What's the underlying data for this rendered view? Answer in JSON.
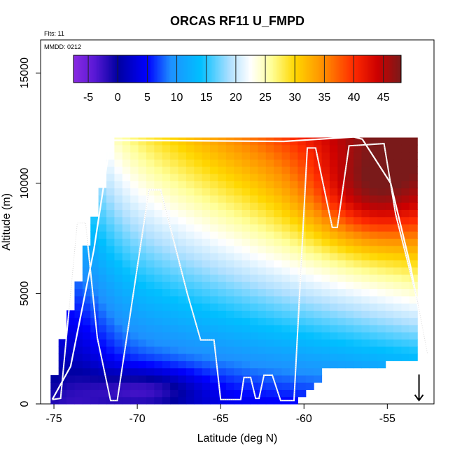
{
  "header": {
    "flights_note": "Flts: 11",
    "mmdd_note": "MMDD: 0212"
  },
  "chart_data": {
    "type": "heatmap",
    "title": "ORCAS RF11 U_FMPD",
    "xlabel": "Latitude (deg N)",
    "ylabel": "Altitude (m)",
    "xlim": [
      -75.8,
      -52.2
    ],
    "ylim": [
      0,
      16500
    ],
    "x_ticks": [
      -75,
      -70,
      -65,
      -60,
      -55
    ],
    "x_tick_labels": [
      "-75",
      "-70",
      "-65",
      "-60",
      "-55"
    ],
    "y_ticks": [
      0,
      5000,
      10000,
      15000
    ],
    "y_tick_labels": [
      "0",
      "5000",
      "10000",
      "15000"
    ],
    "colorbar": {
      "min": -7.5,
      "max": 48,
      "ticks": [
        -5,
        0,
        5,
        10,
        15,
        20,
        25,
        30,
        35,
        40,
        45
      ],
      "tick_labels": [
        "-5",
        "0",
        "5",
        "10",
        "15",
        "20",
        "25",
        "30",
        "35",
        "40",
        "45"
      ],
      "colors": [
        "#8a2be2",
        "#5a19d6",
        "#0000a0",
        "#0000ff",
        "#1e90ff",
        "#00bfff",
        "#b0e0ff",
        "#ffffff",
        "#ffff9a",
        "#ffd700",
        "#ff8c00",
        "#ff2a00",
        "#cc0000",
        "#7a1a1a"
      ],
      "stops": [
        -7.5,
        -4,
        0,
        5,
        9,
        14,
        19,
        22.5,
        26,
        30,
        35,
        40,
        44,
        48
      ]
    },
    "wind_field": {
      "bins_x": 46,
      "bins_y": 38,
      "description": "Zonal wind (m/s), weak near surface in the south, strong jet aloft near -56 to -53 deg N",
      "lat_extent": [
        -75.2,
        -53.2
      ]
    },
    "flight_track": [
      [
        -75.1,
        200
      ],
      [
        -74.6,
        250
      ],
      [
        -73.6,
        8200
      ],
      [
        -73.1,
        8200
      ],
      [
        -72.4,
        3000
      ],
      [
        -71.6,
        150
      ],
      [
        -71.2,
        150
      ],
      [
        -69.8,
        7200
      ],
      [
        -69.3,
        9700
      ],
      [
        -68.6,
        9700
      ],
      [
        -67.0,
        5000
      ],
      [
        -66.2,
        2900
      ],
      [
        -65.4,
        2900
      ],
      [
        -65.0,
        200
      ],
      [
        -63.8,
        200
      ],
      [
        -63.6,
        1200
      ],
      [
        -63.2,
        1200
      ],
      [
        -62.9,
        250
      ],
      [
        -62.7,
        250
      ],
      [
        -62.4,
        1300
      ],
      [
        -61.9,
        1300
      ],
      [
        -61.4,
        150
      ],
      [
        -60.6,
        150
      ],
      [
        -59.8,
        11600
      ],
      [
        -59.3,
        11600
      ],
      [
        -58.3,
        8000
      ],
      [
        -58.0,
        8000
      ],
      [
        -57.3,
        11700
      ],
      [
        -55.2,
        11800
      ],
      [
        -54.5,
        8600
      ],
      [
        -53.2,
        4700
      ],
      [
        -52.6,
        2300
      ]
    ],
    "upper_track": [
      [
        -75.1,
        200
      ],
      [
        -74.0,
        1700
      ],
      [
        -72.6,
        7000
      ],
      [
        -71.6,
        11950
      ],
      [
        -61.2,
        11900
      ],
      [
        -57.0,
        12100
      ],
      [
        -56.5,
        12000
      ],
      [
        -54.8,
        10000
      ],
      [
        -53.6,
        6200
      ],
      [
        -52.8,
        3000
      ]
    ],
    "marker": {
      "lat": -53.1,
      "altitude": 700,
      "symbol": "down-arrow"
    }
  }
}
